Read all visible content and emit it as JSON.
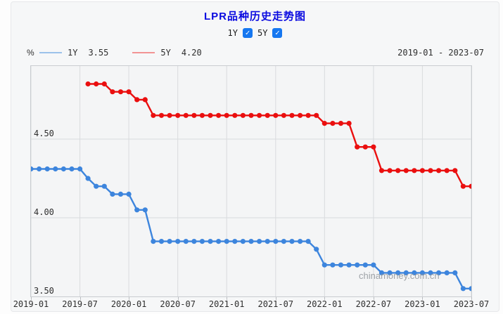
{
  "title": "LPR品种历史走势图",
  "controls": {
    "items": [
      {
        "label": "1Y",
        "checked": true
      },
      {
        "label": "5Y",
        "checked": true
      }
    ]
  },
  "legend": {
    "unit": "%",
    "date_range": "2019-01 - 2023-07",
    "items": [
      {
        "name": "1Y",
        "value": "3.55",
        "swatch_color": "#9cc2ea"
      },
      {
        "name": "5Y",
        "value": "4.20",
        "swatch_color": "#f29494"
      }
    ]
  },
  "watermark": "chinamoney.com.cn",
  "colors": {
    "title": "#0a0ae0",
    "checkbox": "#1677f0",
    "grid": "#d9dbde",
    "plot_border": "#c9ccd0",
    "line_1y": "#3d85dd",
    "line_5y": "#ea0f0f"
  },
  "chart_data": {
    "type": "line",
    "title": "LPR品种历史走势图",
    "ylabel": "%",
    "x_start": "2019-01",
    "x_end": "2023-07",
    "x_point_count": 55,
    "x_tick_labels": [
      "2019-01",
      "2019-07",
      "2020-01",
      "2020-07",
      "2021-01",
      "2021-07",
      "2022-01",
      "2022-07",
      "2023-01",
      "2023-07"
    ],
    "x_tick_indices": [
      0,
      6,
      12,
      18,
      24,
      30,
      36,
      42,
      48,
      54
    ],
    "y_ticks": [
      {
        "label": "4.50",
        "value": 4.5
      },
      {
        "label": "4.00",
        "value": 4.0
      },
      {
        "label": "3.50",
        "value": 3.5
      }
    ],
    "y_gridline_values": [
      4.5,
      4.0
    ],
    "ylim": [
      3.5,
      4.964
    ],
    "grid": true,
    "legend_position": "top-left",
    "series": [
      {
        "name": "1Y",
        "latest_value": 3.55,
        "color": "#3d85dd",
        "start_index": 0,
        "values": [
          4.31,
          4.31,
          4.31,
          4.31,
          4.31,
          4.31,
          4.31,
          4.25,
          4.2,
          4.2,
          4.15,
          4.15,
          4.15,
          4.05,
          4.05,
          3.85,
          3.85,
          3.85,
          3.85,
          3.85,
          3.85,
          3.85,
          3.85,
          3.85,
          3.85,
          3.85,
          3.85,
          3.85,
          3.85,
          3.85,
          3.85,
          3.85,
          3.85,
          3.85,
          3.85,
          3.8,
          3.7,
          3.7,
          3.7,
          3.7,
          3.7,
          3.7,
          3.7,
          3.65,
          3.65,
          3.65,
          3.65,
          3.65,
          3.65,
          3.65,
          3.65,
          3.65,
          3.65,
          3.55,
          3.55
        ]
      },
      {
        "name": "5Y",
        "latest_value": 4.2,
        "color": "#ea0f0f",
        "start_index": 7,
        "values": [
          4.85,
          4.85,
          4.85,
          4.8,
          4.8,
          4.8,
          4.75,
          4.75,
          4.65,
          4.65,
          4.65,
          4.65,
          4.65,
          4.65,
          4.65,
          4.65,
          4.65,
          4.65,
          4.65,
          4.65,
          4.65,
          4.65,
          4.65,
          4.65,
          4.65,
          4.65,
          4.65,
          4.65,
          4.65,
          4.6,
          4.6,
          4.6,
          4.6,
          4.45,
          4.45,
          4.45,
          4.3,
          4.3,
          4.3,
          4.3,
          4.3,
          4.3,
          4.3,
          4.3,
          4.3,
          4.3,
          4.2,
          4.2
        ]
      }
    ]
  }
}
